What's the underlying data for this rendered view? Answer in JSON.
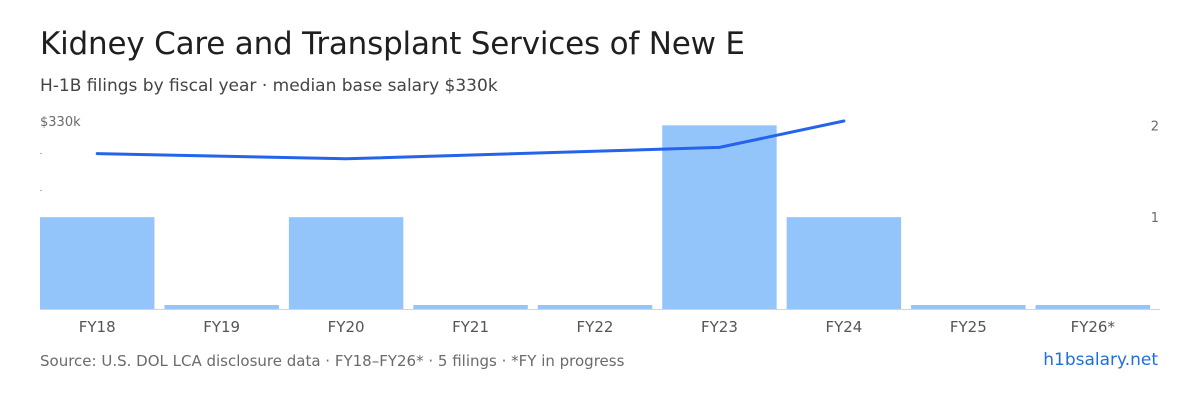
{
  "header": {
    "title": "Kidney Care and Transplant Services of New E",
    "subtitle": "H-1B filings by fiscal year · median base salary $330k"
  },
  "footer": {
    "source": "Source: U.S. DOL LCA disclosure data · FY18–FY26* · 5 filings · *FY in progress",
    "brand": "h1bsalary.net"
  },
  "colors": {
    "bar": "#93c5fb",
    "line": "#2563eb",
    "axis_text": "#6b6b6b",
    "baseline": "#cfd5dc",
    "brand": "#1d6fe0"
  },
  "chart_data": {
    "type": "bar",
    "categories": [
      "FY18",
      "FY19",
      "FY20",
      "FY21",
      "FY22",
      "FY23",
      "FY24",
      "FY25",
      "FY26*"
    ],
    "series": [
      {
        "type": "bar",
        "axis": "right",
        "values": [
          1,
          0,
          1,
          0,
          0,
          2,
          1,
          0,
          0
        ]
      },
      {
        "type": "line",
        "axis": "left",
        "values": [
          300000,
          null,
          290000,
          null,
          null,
          312000,
          363000,
          null,
          null
        ]
      }
    ],
    "left_axis": {
      "tick_labels": [
        "$330k"
      ],
      "range": [
        0,
        363000
      ]
    },
    "right_axis": {
      "tick_labels": [
        "1",
        "2"
      ],
      "range": [
        0,
        2.45
      ]
    },
    "grid": false,
    "legend": "none"
  }
}
